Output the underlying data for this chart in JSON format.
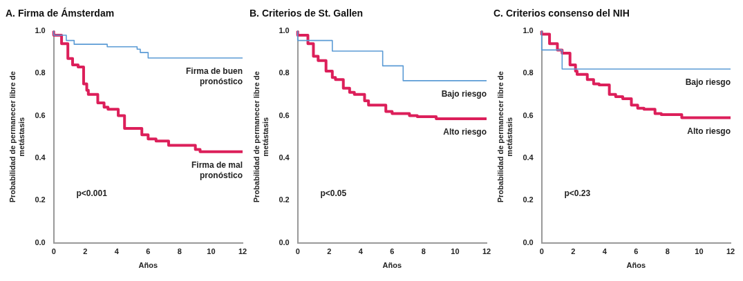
{
  "chart_data": [
    {
      "type": "step",
      "title": "A. Firma de Ámsterdam",
      "xlabel": "Años",
      "ylabel": "Probabilidad de permanecer libre de metástasis",
      "xlim": [
        0,
        12
      ],
      "ylim": [
        0,
        1
      ],
      "xticks": [
        0,
        2,
        4,
        6,
        8,
        10,
        12
      ],
      "yticks": [
        {
          "value": 0,
          "label": "0.0"
        },
        {
          "value": 0.2,
          "label": "0.2"
        },
        {
          "value": 0.4,
          "label": "0.4"
        },
        {
          "value": 0.6,
          "label": "0.6"
        },
        {
          "value": 0.8,
          "label": "0.8"
        },
        {
          "value": 1,
          "label": "1.0"
        }
      ],
      "grid": false,
      "legend": false,
      "marker": "none",
      "annotations": [
        "p<0.001"
      ],
      "series": [
        {
          "name": "Firma de buen pronóstico",
          "color": "#5b9bd5",
          "x": [
            0,
            0.8,
            1.3,
            3.4,
            5.3,
            5.5,
            6.0,
            7.3,
            12
          ],
          "values": [
            1.0,
            0.98,
            0.955,
            0.937,
            0.925,
            0.914,
            0.898,
            0.872,
            0.872
          ]
        },
        {
          "name": "Firma de mal pronóstico",
          "color": "#dc1f5a",
          "x": [
            0,
            0.5,
            0.9,
            1.2,
            1.55,
            1.9,
            2.1,
            2.2,
            2.8,
            3.2,
            3.45,
            4.1,
            4.5,
            4.9,
            5.6,
            6.0,
            6.5,
            7.3,
            7.7,
            9.0,
            9.3,
            9.6,
            12
          ],
          "values": [
            1.0,
            0.98,
            0.94,
            0.87,
            0.84,
            0.83,
            0.75,
            0.72,
            0.7,
            0.66,
            0.64,
            0.63,
            0.6,
            0.54,
            0.54,
            0.51,
            0.49,
            0.48,
            0.46,
            0.46,
            0.44,
            0.43,
            0.43
          ]
        }
      ]
    },
    {
      "type": "step",
      "title": "B. Criterios de St. Gallen",
      "xlabel": "Años",
      "ylabel": "Probabilidad de permanecer libre de metástasis",
      "xlim": [
        0,
        12
      ],
      "ylim": [
        0,
        1
      ],
      "xticks": [
        0,
        2,
        4,
        6,
        8,
        10,
        12
      ],
      "yticks": [
        {
          "value": 0,
          "label": "0.0"
        },
        {
          "value": 0.2,
          "label": "0.2"
        },
        {
          "value": 0.4,
          "label": "0.4"
        },
        {
          "value": 0.6,
          "label": "0.6"
        },
        {
          "value": 0.8,
          "label": "0.8"
        },
        {
          "value": 1,
          "label": "1.0"
        }
      ],
      "grid": false,
      "legend": false,
      "marker": "none",
      "annotations": [
        "p<0.05"
      ],
      "series": [
        {
          "name": "Bajo riesgo",
          "color": "#5b9bd5",
          "x": [
            0,
            2.2,
            5.4,
            6.7,
            7.4,
            12
          ],
          "values": [
            1.0,
            0.955,
            0.905,
            0.835,
            0.765,
            0.765
          ]
        },
        {
          "name": "Alto riesgo",
          "color": "#dc1f5a",
          "x": [
            0,
            0.65,
            1.0,
            1.3,
            1.8,
            2.2,
            2.4,
            2.9,
            3.3,
            3.6,
            4.25,
            4.5,
            4.9,
            5.6,
            6.0,
            6.4,
            7.1,
            7.6,
            8.8,
            9.4,
            12
          ],
          "values": [
            1.0,
            0.98,
            0.94,
            0.88,
            0.86,
            0.81,
            0.78,
            0.77,
            0.73,
            0.71,
            0.7,
            0.67,
            0.65,
            0.65,
            0.62,
            0.61,
            0.61,
            0.6,
            0.595,
            0.585,
            0.585
          ]
        }
      ]
    },
    {
      "type": "step",
      "title": "C. Criterios consenso del NIH",
      "xlabel": "Años",
      "ylabel": "Probabilidad de permanecer libre de metástasis",
      "xlim": [
        0,
        12
      ],
      "ylim": [
        0,
        1
      ],
      "xticks": [
        0,
        2,
        4,
        6,
        8,
        10,
        12
      ],
      "yticks": [
        {
          "value": 0,
          "label": "0.0"
        },
        {
          "value": 0.2,
          "label": "0.2"
        },
        {
          "value": 0.4,
          "label": "0.4"
        },
        {
          "value": 0.6,
          "label": "0.6"
        },
        {
          "value": 0.8,
          "label": "0.8"
        },
        {
          "value": 1,
          "label": "1.0"
        }
      ],
      "grid": false,
      "legend": false,
      "marker": "none",
      "annotations": [
        "p<0.23"
      ],
      "series": [
        {
          "name": "Bajo riesgo",
          "color": "#5b9bd5",
          "x": [
            0,
            1.3,
            2.6,
            12
          ],
          "values": [
            1.0,
            0.91,
            0.82,
            0.82
          ]
        },
        {
          "name": "Alto riesgo",
          "color": "#dc1f5a",
          "x": [
            0,
            0.5,
            1.0,
            1.3,
            1.8,
            2.15,
            2.25,
            2.9,
            3.3,
            3.65,
            4.3,
            4.7,
            5.15,
            5.7,
            6.1,
            6.5,
            7.2,
            7.6,
            8.9,
            9.4,
            12
          ],
          "values": [
            1.0,
            0.985,
            0.94,
            0.91,
            0.895,
            0.84,
            0.81,
            0.795,
            0.77,
            0.75,
            0.745,
            0.7,
            0.69,
            0.68,
            0.65,
            0.635,
            0.63,
            0.61,
            0.605,
            0.59,
            0.59
          ]
        }
      ]
    }
  ]
}
